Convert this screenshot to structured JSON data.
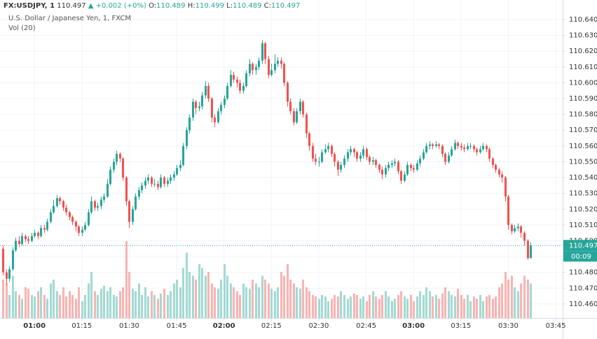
{
  "chart_data": {
    "type": "candlestick",
    "header": {
      "symbol": "FX:USDJPY, 1",
      "price": "110.497",
      "change": "▲ +0.002 (+0%)",
      "ohlc": [
        {
          "label": "O:",
          "value": "110.489"
        },
        {
          "label": "H:",
          "value": "110.499"
        },
        {
          "label": "L:",
          "value": "110.489"
        },
        {
          "label": "C:",
          "value": "110.497"
        }
      ],
      "subtitle": "U.S. Dollar / Japanese Yen, 1, FXCM",
      "volume_label": "Vol (20)"
    },
    "colors": {
      "up": "#26a69a",
      "down": "#ef5350",
      "up_volume": "#a3d9d3",
      "down_volume": "#f7b4b3",
      "grid": "#f0f3fa"
    },
    "grid": true,
    "last_price": {
      "value": 110.497,
      "label": "110.497",
      "countdown": "00:09"
    },
    "ylim": [
      110.4511,
      110.6524
    ],
    "yticks": [
      {
        "value": 110.46,
        "label": "110.460"
      },
      {
        "value": 110.47,
        "label": "110.470"
      },
      {
        "value": 110.48,
        "label": "110.480"
      },
      {
        "value": 110.49,
        "label": "110.490"
      },
      {
        "value": 110.5,
        "label": "110.500"
      },
      {
        "value": 110.51,
        "label": "110.510"
      },
      {
        "value": 110.52,
        "label": "110.520"
      },
      {
        "value": 110.53,
        "label": "110.530"
      },
      {
        "value": 110.54,
        "label": "110.540"
      },
      {
        "value": 110.55,
        "label": "110.550"
      },
      {
        "value": 110.56,
        "label": "110.560"
      },
      {
        "value": 110.57,
        "label": "110.570"
      },
      {
        "value": 110.58,
        "label": "110.580"
      },
      {
        "value": 110.59,
        "label": "110.590"
      },
      {
        "value": 110.6,
        "label": "110.600"
      },
      {
        "value": 110.61,
        "label": "110.610"
      },
      {
        "value": 110.62,
        "label": "110.620"
      },
      {
        "value": 110.63,
        "label": "110.630"
      },
      {
        "value": 110.64,
        "label": "110.640"
      }
    ],
    "xlim": [
      -0.9,
      177.2
    ],
    "xticks": [
      {
        "value": 10,
        "label": "01:00"
      },
      {
        "value": 25,
        "label": "01:15"
      },
      {
        "value": 40,
        "label": "01:30"
      },
      {
        "value": 55,
        "label": "01:45"
      },
      {
        "value": 70,
        "label": "02:00"
      },
      {
        "value": 85,
        "label": "02:15"
      },
      {
        "value": 100,
        "label": "02:30"
      },
      {
        "value": 115,
        "label": "02:45"
      },
      {
        "value": 130,
        "label": "03:00"
      },
      {
        "value": 145,
        "label": "03:15"
      },
      {
        "value": 160,
        "label": "03:30"
      },
      {
        "value": 175,
        "label": "03:45"
      }
    ],
    "volume_lim": [
      0,
      120
    ],
    "candles": [
      [
        110.495,
        110.497,
        110.478,
        110.48
      ],
      [
        110.48,
        110.482,
        110.472,
        110.476
      ],
      [
        110.476,
        110.484,
        110.474,
        110.482
      ],
      [
        110.482,
        110.496,
        110.481,
        110.494
      ],
      [
        110.494,
        110.502,
        110.493,
        110.5
      ],
      [
        110.5,
        110.503,
        110.496,
        110.498
      ],
      [
        110.498,
        110.505,
        110.497,
        110.503
      ],
      [
        110.503,
        110.504,
        110.499,
        110.501
      ],
      [
        110.501,
        110.503,
        110.498,
        110.5
      ],
      [
        110.5,
        110.505,
        110.499,
        110.503
      ],
      [
        110.503,
        110.507,
        110.502,
        110.505
      ],
      [
        110.505,
        110.506,
        110.501,
        110.503
      ],
      [
        110.503,
        110.51,
        110.502,
        110.508
      ],
      [
        110.508,
        110.51,
        110.505,
        110.507
      ],
      [
        110.507,
        110.514,
        110.506,
        110.512
      ],
      [
        110.512,
        110.52,
        110.511,
        110.518
      ],
      [
        110.518,
        110.526,
        110.517,
        110.522
      ],
      [
        110.522,
        110.529,
        110.521,
        110.527
      ],
      [
        110.527,
        110.528,
        110.523,
        110.525
      ],
      [
        110.525,
        110.526,
        110.519,
        110.521
      ],
      [
        110.521,
        110.523,
        110.516,
        110.518
      ],
      [
        110.518,
        110.519,
        110.513,
        110.515
      ],
      [
        110.515,
        110.516,
        110.51,
        110.512
      ],
      [
        110.512,
        110.513,
        110.506,
        110.509
      ],
      [
        110.509,
        110.51,
        110.503,
        110.505
      ],
      [
        110.505,
        110.509,
        110.503,
        110.507
      ],
      [
        110.507,
        110.512,
        110.506,
        110.51
      ],
      [
        110.51,
        110.52,
        110.509,
        110.518
      ],
      [
        110.518,
        110.528,
        110.517,
        110.525
      ],
      [
        110.525,
        110.526,
        110.519,
        110.521
      ],
      [
        110.521,
        110.524,
        110.519,
        110.522
      ],
      [
        110.522,
        110.528,
        110.52,
        110.526
      ],
      [
        110.526,
        110.53,
        110.524,
        110.528
      ],
      [
        110.528,
        110.539,
        110.527,
        110.536
      ],
      [
        110.536,
        110.547,
        110.535,
        110.545
      ],
      [
        110.545,
        110.552,
        110.543,
        110.55
      ],
      [
        110.55,
        110.557,
        110.548,
        110.555
      ],
      [
        110.555,
        110.556,
        110.55,
        110.552
      ],
      [
        110.552,
        110.553,
        110.538,
        110.54
      ],
      [
        110.54,
        110.541,
        110.522,
        110.525
      ],
      [
        110.525,
        110.526,
        110.508,
        110.512
      ],
      [
        110.512,
        110.522,
        110.51,
        110.52
      ],
      [
        110.52,
        110.53,
        110.519,
        110.528
      ],
      [
        110.528,
        110.534,
        110.526,
        110.532
      ],
      [
        110.532,
        110.537,
        110.53,
        110.535
      ],
      [
        110.535,
        110.54,
        110.533,
        110.538
      ],
      [
        110.538,
        110.542,
        110.536,
        110.54
      ],
      [
        110.54,
        110.541,
        110.534,
        110.536
      ],
      [
        110.536,
        110.539,
        110.534,
        110.536
      ],
      [
        110.536,
        110.538,
        110.532,
        110.534
      ],
      [
        110.534,
        110.542,
        110.533,
        110.54
      ],
      [
        110.54,
        110.541,
        110.534,
        110.536
      ],
      [
        110.536,
        110.54,
        110.534,
        110.538
      ],
      [
        110.538,
        110.542,
        110.536,
        110.54
      ],
      [
        110.54,
        110.544,
        110.538,
        110.542
      ],
      [
        110.542,
        110.548,
        110.541,
        110.546
      ],
      [
        110.546,
        110.551,
        110.544,
        110.548
      ],
      [
        110.548,
        110.562,
        110.547,
        110.56
      ],
      [
        110.56,
        110.572,
        110.558,
        110.57
      ],
      [
        110.57,
        110.58,
        110.568,
        110.578
      ],
      [
        110.578,
        110.59,
        110.576,
        110.588
      ],
      [
        110.588,
        110.589,
        110.58,
        110.584
      ],
      [
        110.584,
        110.588,
        110.582,
        110.585
      ],
      [
        110.585,
        110.594,
        110.583,
        110.592
      ],
      [
        110.592,
        110.601,
        110.59,
        110.598
      ],
      [
        110.598,
        110.6,
        110.588,
        110.59
      ],
      [
        110.59,
        110.591,
        110.575,
        110.578
      ],
      [
        110.578,
        110.58,
        110.572,
        110.575
      ],
      [
        110.575,
        110.584,
        110.574,
        110.582
      ],
      [
        110.582,
        110.588,
        110.58,
        110.586
      ],
      [
        110.586,
        110.592,
        110.584,
        110.59
      ],
      [
        110.59,
        110.6,
        110.589,
        110.598
      ],
      [
        110.598,
        110.608,
        110.597,
        110.605
      ],
      [
        110.605,
        110.607,
        110.6,
        110.602
      ],
      [
        110.602,
        110.604,
        110.597,
        110.6
      ],
      [
        110.6,
        110.602,
        110.593,
        110.595
      ],
      [
        110.595,
        110.6,
        110.593,
        110.598
      ],
      [
        110.598,
        110.608,
        110.597,
        110.606
      ],
      [
        110.606,
        110.615,
        110.604,
        110.612
      ],
      [
        110.612,
        110.613,
        110.605,
        110.608
      ],
      [
        110.608,
        110.612,
        110.605,
        110.61
      ],
      [
        110.61,
        110.616,
        110.608,
        110.614
      ],
      [
        110.614,
        110.627,
        110.612,
        110.625
      ],
      [
        110.625,
        110.626,
        110.612,
        110.615
      ],
      [
        110.615,
        110.617,
        110.603,
        110.605
      ],
      [
        110.605,
        110.612,
        110.604,
        110.608
      ],
      [
        110.608,
        110.618,
        110.606,
        110.612
      ],
      [
        110.612,
        110.616,
        110.61,
        110.614
      ],
      [
        110.614,
        110.616,
        110.609,
        110.612
      ],
      [
        110.612,
        110.613,
        110.598,
        110.6
      ],
      [
        110.6,
        110.601,
        110.585,
        110.588
      ],
      [
        110.588,
        110.59,
        110.58,
        110.582
      ],
      [
        110.582,
        110.584,
        110.573,
        110.575
      ],
      [
        110.575,
        110.584,
        110.574,
        110.582
      ],
      [
        110.582,
        110.59,
        110.58,
        110.588
      ],
      [
        110.588,
        110.589,
        110.578,
        110.58
      ],
      [
        110.58,
        110.581,
        110.565,
        110.568
      ],
      [
        110.568,
        110.569,
        110.557,
        110.56
      ],
      [
        110.56,
        110.562,
        110.55,
        110.552
      ],
      [
        110.552,
        110.555,
        110.548,
        110.55
      ],
      [
        110.55,
        110.553,
        110.547,
        110.55
      ],
      [
        110.55,
        110.558,
        110.549,
        110.556
      ],
      [
        110.556,
        110.561,
        110.555,
        110.558
      ],
      [
        110.558,
        110.562,
        110.556,
        110.56
      ],
      [
        110.56,
        110.561,
        110.553,
        110.555
      ],
      [
        110.555,
        110.556,
        110.547,
        110.55
      ],
      [
        110.55,
        110.551,
        110.541,
        110.545
      ],
      [
        110.545,
        110.55,
        110.543,
        110.548
      ],
      [
        110.548,
        110.554,
        110.546,
        110.552
      ],
      [
        110.552,
        110.558,
        110.55,
        110.556
      ],
      [
        110.556,
        110.56,
        110.554,
        110.558
      ],
      [
        110.558,
        110.559,
        110.553,
        110.556
      ],
      [
        110.556,
        110.557,
        110.55,
        110.552
      ],
      [
        110.552,
        110.556,
        110.55,
        110.554
      ],
      [
        110.554,
        110.56,
        110.552,
        110.558
      ],
      [
        110.558,
        110.559,
        110.551,
        110.553
      ],
      [
        110.553,
        110.554,
        110.548,
        110.55
      ],
      [
        110.55,
        110.553,
        110.548,
        110.551
      ],
      [
        110.551,
        110.552,
        110.546,
        110.548
      ],
      [
        110.548,
        110.549,
        110.543,
        110.545
      ],
      [
        110.545,
        110.547,
        110.539,
        110.542
      ],
      [
        110.542,
        110.548,
        110.54,
        110.546
      ],
      [
        110.546,
        110.55,
        110.544,
        110.548
      ],
      [
        110.548,
        110.551,
        110.546,
        110.549
      ],
      [
        110.549,
        110.552,
        110.547,
        110.55
      ],
      [
        110.55,
        110.551,
        110.542,
        110.544
      ],
      [
        110.544,
        110.545,
        110.536,
        110.538
      ],
      [
        110.538,
        110.544,
        110.537,
        110.542
      ],
      [
        110.542,
        110.55,
        110.541,
        110.548
      ],
      [
        110.548,
        110.549,
        110.544,
        110.546
      ],
      [
        110.546,
        110.548,
        110.543,
        110.545
      ],
      [
        110.545,
        110.551,
        110.544,
        110.549
      ],
      [
        110.549,
        110.554,
        110.547,
        110.552
      ],
      [
        110.552,
        110.558,
        110.551,
        110.556
      ],
      [
        110.556,
        110.562,
        110.555,
        110.56
      ],
      [
        110.56,
        110.563,
        110.558,
        110.561
      ],
      [
        110.561,
        110.562,
        110.558,
        110.56
      ],
      [
        110.56,
        110.563,
        110.559,
        110.561
      ],
      [
        110.561,
        110.562,
        110.558,
        110.56
      ],
      [
        110.56,
        110.561,
        110.553,
        110.555
      ],
      [
        110.555,
        110.556,
        110.548,
        110.55
      ],
      [
        110.55,
        110.556,
        110.549,
        110.554
      ],
      [
        110.554,
        110.56,
        110.553,
        110.558
      ],
      [
        110.558,
        110.564,
        110.557,
        110.562
      ],
      [
        110.562,
        110.563,
        110.558,
        110.56
      ],
      [
        110.56,
        110.562,
        110.557,
        110.559
      ],
      [
        110.559,
        110.561,
        110.556,
        110.558
      ],
      [
        110.558,
        110.562,
        110.557,
        110.56
      ],
      [
        110.56,
        110.562,
        110.558,
        110.56
      ],
      [
        110.56,
        110.561,
        110.556,
        110.558
      ],
      [
        110.558,
        110.559,
        110.554,
        110.556
      ],
      [
        110.556,
        110.56,
        110.555,
        110.558
      ],
      [
        110.558,
        110.562,
        110.557,
        110.56
      ],
      [
        110.56,
        110.561,
        110.556,
        110.558
      ],
      [
        110.558,
        110.559,
        110.55,
        110.552
      ],
      [
        110.552,
        110.553,
        110.546,
        110.548
      ],
      [
        110.548,
        110.549,
        110.543,
        110.545
      ],
      [
        110.545,
        110.546,
        110.54,
        110.542
      ],
      [
        110.542,
        110.544,
        110.537,
        110.54
      ],
      [
        110.54,
        110.541,
        110.525,
        110.528
      ],
      [
        110.528,
        110.529,
        110.507,
        110.51
      ],
      [
        110.51,
        110.511,
        110.504,
        110.506
      ],
      [
        110.506,
        110.51,
        110.505,
        110.508
      ],
      [
        110.508,
        110.511,
        110.506,
        110.509
      ],
      [
        110.509,
        110.51,
        110.502,
        110.505
      ],
      [
        110.505,
        110.506,
        110.497,
        110.5
      ],
      [
        110.5,
        110.501,
        110.488,
        110.489
      ],
      [
        110.489,
        110.499,
        110.489,
        110.497
      ]
    ],
    "volume": [
      50,
      45,
      30,
      55,
      35,
      30,
      25,
      40,
      38,
      30,
      28,
      35,
      40,
      30,
      25,
      45,
      50,
      35,
      30,
      40,
      28,
      35,
      30,
      25,
      40,
      22,
      30,
      45,
      60,
      35,
      30,
      38,
      42,
      35,
      40,
      30,
      28,
      35,
      40,
      100,
      60,
      38,
      35,
      45,
      30,
      40,
      28,
      35,
      30,
      25,
      32,
      38,
      30,
      35,
      45,
      50,
      40,
      65,
      85,
      60,
      55,
      50,
      70,
      65,
      55,
      60,
      45,
      40,
      38,
      50,
      70,
      55,
      45,
      40,
      35,
      30,
      45,
      40,
      38,
      50,
      45,
      40,
      55,
      50,
      45,
      38,
      35,
      40,
      60,
      55,
      70,
      50,
      45,
      40,
      38,
      50,
      40,
      35,
      30,
      28,
      25,
      30,
      28,
      22,
      25,
      30,
      28,
      35,
      30,
      25,
      28,
      32,
      30,
      25,
      28,
      22,
      30,
      35,
      28,
      25,
      30,
      35,
      28,
      22,
      25,
      30,
      35,
      28,
      25,
      30,
      22,
      28,
      35,
      30,
      40,
      35,
      28,
      30,
      25,
      32,
      40,
      35,
      30,
      28,
      38,
      30,
      25,
      30,
      22,
      28,
      25,
      30,
      22,
      28,
      30,
      25,
      28,
      40,
      45,
      60,
      50,
      55,
      40,
      35,
      45,
      55,
      50,
      45
    ]
  }
}
